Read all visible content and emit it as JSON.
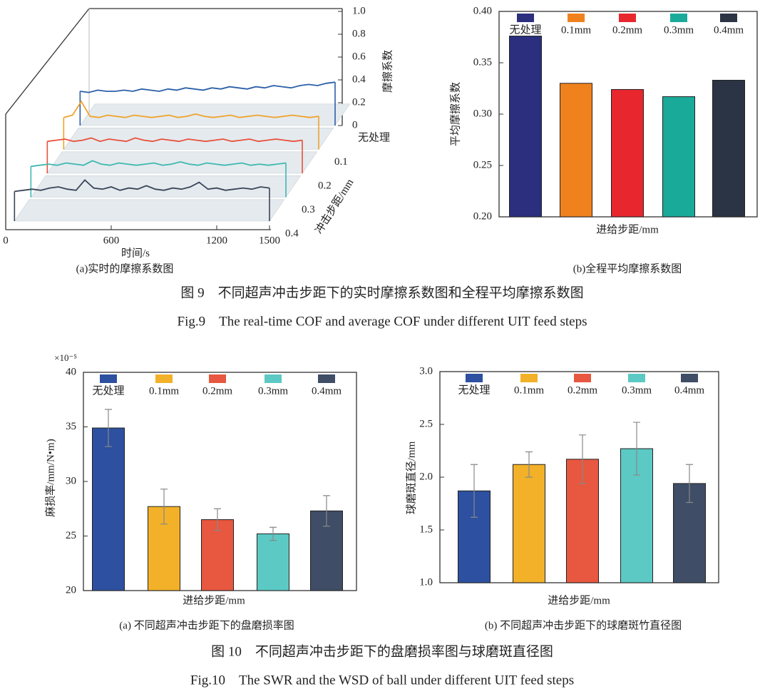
{
  "chart_data": [
    {
      "type": "waterfall",
      "caption": "(a)实时的摩擦系数图",
      "xlabel": "时间/s",
      "ylabel": "摩擦系数",
      "depth_label": "冲击步距/mm",
      "x": [
        50,
        100,
        150,
        200,
        250,
        300,
        350,
        400,
        450,
        500,
        550,
        600,
        650,
        700,
        750,
        800,
        850,
        900,
        950,
        1000,
        1050,
        1100,
        1150,
        1200,
        1250,
        1300,
        1350,
        1400,
        1450,
        1500
      ],
      "series": [
        {
          "name": "无处理",
          "color": "#2b5fa8",
          "values": [
            0.3,
            0.29,
            0.31,
            0.3,
            0.3,
            0.31,
            0.3,
            0.32,
            0.31,
            0.3,
            0.32,
            0.31,
            0.33,
            0.32,
            0.31,
            0.33,
            0.32,
            0.34,
            0.33,
            0.32,
            0.34,
            0.33,
            0.35,
            0.34,
            0.33,
            0.35,
            0.36,
            0.35,
            0.37,
            0.38
          ]
        },
        {
          "name": "0.1",
          "color": "#f0a22a",
          "values": [
            0.28,
            0.3,
            0.42,
            0.29,
            0.28,
            0.3,
            0.29,
            0.28,
            0.3,
            0.29,
            0.28,
            0.29,
            0.3,
            0.28,
            0.29,
            0.31,
            0.29,
            0.28,
            0.29,
            0.3,
            0.28,
            0.29,
            0.3,
            0.29,
            0.28,
            0.29,
            0.3,
            0.29,
            0.28,
            0.29
          ]
        },
        {
          "name": "0.2",
          "color": "#e8503a",
          "values": [
            0.28,
            0.29,
            0.3,
            0.28,
            0.29,
            0.31,
            0.28,
            0.3,
            0.29,
            0.28,
            0.31,
            0.29,
            0.28,
            0.3,
            0.29,
            0.28,
            0.3,
            0.29,
            0.28,
            0.29,
            0.3,
            0.28,
            0.29,
            0.3,
            0.28,
            0.29,
            0.3,
            0.29,
            0.28,
            0.29
          ]
        },
        {
          "name": "0.3",
          "color": "#3fb8b0",
          "values": [
            0.27,
            0.28,
            0.29,
            0.28,
            0.3,
            0.29,
            0.28,
            0.32,
            0.29,
            0.28,
            0.3,
            0.29,
            0.28,
            0.29,
            0.3,
            0.28,
            0.29,
            0.31,
            0.29,
            0.28,
            0.3,
            0.29,
            0.28,
            0.29,
            0.3,
            0.28,
            0.29,
            0.28,
            0.29,
            0.3
          ]
        },
        {
          "name": "0.4",
          "color": "#3a4558",
          "values": [
            0.26,
            0.27,
            0.28,
            0.27,
            0.29,
            0.3,
            0.28,
            0.27,
            0.36,
            0.29,
            0.28,
            0.3,
            0.27,
            0.29,
            0.28,
            0.31,
            0.28,
            0.27,
            0.29,
            0.28,
            0.3,
            0.34,
            0.28,
            0.29,
            0.27,
            0.28,
            0.29,
            0.28,
            0.3,
            0.29
          ]
        }
      ],
      "xlim": [
        0,
        1500
      ],
      "xticks": [
        0,
        600,
        1200,
        1500
      ],
      "ylim": [
        0,
        1
      ],
      "yticks": [
        0,
        0.2,
        0.4,
        0.6,
        0.8,
        {
          "value": 1,
          "label": "1.0"
        }
      ]
    },
    {
      "type": "bar",
      "caption": "(b)全程平均摩擦系数图",
      "xlabel": "进给步距/mm",
      "ylabel": "平均摩擦系数",
      "categories": [
        "无处理",
        "0.1mm",
        "0.2mm",
        "0.3mm",
        "0.4mm"
      ],
      "values": [
        0.376,
        0.33,
        0.324,
        0.317,
        0.333
      ],
      "colors": [
        "#2b2f7e",
        "#f0821e",
        "#e8262e",
        "#1aaa9a",
        "#2a3444"
      ],
      "ylim": [
        0.2,
        0.4
      ],
      "yticks": [
        {
          "value": 0.2,
          "label": "0.20"
        },
        0.25,
        {
          "value": 0.3,
          "label": "0.30"
        },
        0.35,
        {
          "value": 0.4,
          "label": "0.40"
        }
      ]
    },
    {
      "type": "bar",
      "caption": "(a) 不同超声冲击步距下的盘磨损率图",
      "xlabel": "进给步距/mm",
      "ylabel": "麻损率/mm/N•m)",
      "y_scale_label": "×10⁻⁵",
      "categories": [
        "无处理",
        "0.1mm",
        "0.2mm",
        "0.3mm",
        "0.4mm"
      ],
      "values": [
        34.9,
        27.7,
        26.5,
        25.2,
        27.3
      ],
      "errors": [
        1.7,
        1.6,
        1.0,
        0.6,
        1.4
      ],
      "colors": [
        "#2d50a0",
        "#f2b128",
        "#e8573f",
        "#5cc9c4",
        "#3f4d66"
      ],
      "ylim": [
        20,
        40
      ],
      "yticks": [
        20,
        25,
        30,
        35,
        40
      ]
    },
    {
      "type": "bar",
      "caption": "(b) 不同超声冲击步距下的球磨斑竹直径图",
      "xlabel": "进给步距/mm",
      "ylabel": "球磨斑直径/mm",
      "categories": [
        "无处理",
        "0.1mm",
        "0.2mm",
        "0.3mm",
        "0.4mm"
      ],
      "values": [
        1.87,
        2.12,
        2.17,
        2.27,
        1.94
      ],
      "errors": [
        0.25,
        0.12,
        0.23,
        0.25,
        0.18
      ],
      "colors": [
        "#2d50a0",
        "#f2b128",
        "#e8573f",
        "#5cc9c4",
        "#3f4d66"
      ],
      "ylim": [
        1,
        3
      ],
      "yticks": [
        {
          "value": 1,
          "label": "1.0"
        },
        1.5,
        {
          "value": 2,
          "label": "2.0"
        },
        2.5,
        {
          "value": 3,
          "label": "3.0"
        }
      ]
    }
  ],
  "figures": [
    {
      "caption_cn": "图 9　不同超声冲击步距下的实时摩擦系数图和全程平均摩擦系数图",
      "caption_en": "Fig.9　The real-time COF and average COF under different UIT feed steps"
    },
    {
      "caption_cn": "图 10　不同超声冲击步距下的盘磨损率图与球磨斑直径图",
      "caption_en": "Fig.10　The SWR and the WSD of ball under different UIT feed steps"
    }
  ]
}
